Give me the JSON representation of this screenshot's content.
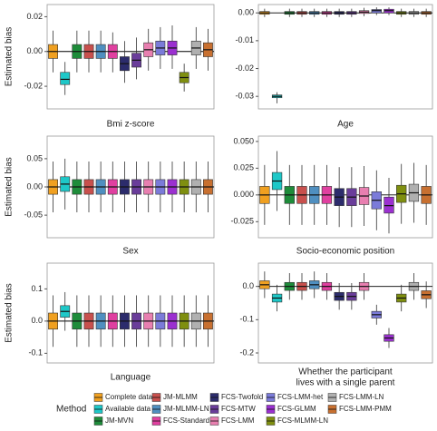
{
  "legend": {
    "title": "Method",
    "series": [
      {
        "name": "Complete data",
        "color": "#F0A020"
      },
      {
        "name": "Available data",
        "color": "#1EC8C8"
      },
      {
        "name": "JM-MVN",
        "color": "#1E8C3A"
      },
      {
        "name": "JM-MLMM",
        "color": "#C8504D"
      },
      {
        "name": "JM-MLMM-LN",
        "color": "#4F8FC0"
      },
      {
        "name": "FCS-Standard",
        "color": "#E040A0"
      },
      {
        "name": "FCS-Twofold",
        "color": "#2C2C6C"
      },
      {
        "name": "FCS-MTW",
        "color": "#6A3D9A"
      },
      {
        "name": "FCS-LMM",
        "color": "#E87FB0"
      },
      {
        "name": "FCS-LMM-het",
        "color": "#7B7BD9"
      },
      {
        "name": "FCS-GLMM",
        "color": "#9B30D0"
      },
      {
        "name": "FCS-MLMM-LN",
        "color": "#7F8F10"
      },
      {
        "name": "FCS-LMM-LN",
        "color": "#B0B0B0"
      },
      {
        "name": "FCS-LMM-PMM",
        "color": "#C87030"
      }
    ]
  },
  "chart_data": [
    {
      "type": "box",
      "xlabel": "Bmi z-score",
      "ylabel": "Estimated bias",
      "ylim": [
        -0.033,
        0.027
      ],
      "yticks": [
        -0.02,
        {
          "value": 0,
          "label": "0.00"
        },
        0.02
      ],
      "hline": 0,
      "boxes": [
        [
          -0.012,
          -0.004,
          0,
          0.004,
          0.012
        ],
        [
          -0.025,
          -0.019,
          -0.016,
          -0.012,
          -0.006
        ],
        [
          -0.012,
          -0.004,
          0,
          0.004,
          0.012
        ],
        [
          -0.012,
          -0.004,
          0,
          0.004,
          0.012
        ],
        [
          -0.012,
          -0.004,
          0,
          0.004,
          0.012
        ],
        [
          -0.012,
          -0.004,
          0,
          0.004,
          0.011
        ],
        [
          -0.018,
          -0.011,
          -0.007,
          -0.003,
          0.006
        ],
        [
          -0.016,
          -0.009,
          -0.005,
          -0.001,
          0.008
        ],
        [
          -0.011,
          -0.003,
          0.001,
          0.005,
          0.013
        ],
        [
          -0.01,
          -0.002,
          0.002,
          0.006,
          0.014
        ],
        [
          -0.01,
          -0.002,
          0.002,
          0.006,
          0.015
        ],
        [
          -0.023,
          -0.018,
          -0.015,
          -0.012,
          -0.007
        ],
        [
          -0.01,
          -0.002,
          0.002,
          0.006,
          0.014
        ],
        [
          -0.011,
          -0.003,
          0.001,
          0.005,
          0.013
        ]
      ]
    },
    {
      "type": "box",
      "xlabel": "Age",
      "ylim": [
        -0.0345,
        0.003
      ],
      "yticks": [
        -0.03,
        -0.02,
        -0.01,
        {
          "value": 0,
          "label": "0.00"
        }
      ],
      "hline": 0,
      "boxes": [
        [
          -0.0015,
          -0.0005,
          0,
          0.0005,
          0.0015
        ],
        [
          -0.0325,
          -0.0305,
          -0.03,
          -0.0295,
          -0.0285
        ],
        [
          -0.0015,
          -0.0005,
          0,
          0.0005,
          0.0015
        ],
        [
          -0.0015,
          -0.0005,
          0,
          0.0005,
          0.0015
        ],
        [
          -0.0015,
          -0.0005,
          0,
          0.0005,
          0.0015
        ],
        [
          -0.0015,
          -0.0005,
          0,
          0.0005,
          0.0015
        ],
        [
          -0.0015,
          -0.0005,
          0,
          0.0005,
          0.0015
        ],
        [
          -0.0015,
          -0.0005,
          0,
          0.0005,
          0.0015
        ],
        [
          -0.0012,
          -0.0002,
          0.0003,
          0.0008,
          0.0018
        ],
        [
          -0.0008,
          0,
          0.0008,
          0.0012,
          0.002
        ],
        [
          -0.0008,
          0,
          0.0008,
          0.0013,
          0.002
        ],
        [
          -0.0015,
          -0.0005,
          0,
          0.0005,
          0.0015
        ],
        [
          -0.0015,
          -0.0005,
          0,
          0.0005,
          0.0015
        ],
        [
          -0.0015,
          -0.0005,
          0,
          0.0005,
          0.0015
        ]
      ]
    },
    {
      "type": "box",
      "xlabel": "Sex",
      "ylabel": "Estimated bias",
      "ylim": [
        -0.09,
        0.09
      ],
      "yticks": [
        -0.05,
        {
          "value": 0,
          "label": "0.00"
        },
        0.05
      ],
      "hline": 0,
      "boxes": [
        [
          -0.045,
          -0.013,
          0,
          0.013,
          0.045
        ],
        [
          -0.04,
          -0.008,
          0.005,
          0.018,
          0.05
        ],
        [
          -0.045,
          -0.013,
          0,
          0.013,
          0.045
        ],
        [
          -0.045,
          -0.013,
          0,
          0.013,
          0.045
        ],
        [
          -0.045,
          -0.013,
          0,
          0.013,
          0.045
        ],
        [
          -0.045,
          -0.013,
          0,
          0.013,
          0.045
        ],
        [
          -0.045,
          -0.013,
          0,
          0.013,
          0.045
        ],
        [
          -0.045,
          -0.013,
          0,
          0.013,
          0.045
        ],
        [
          -0.045,
          -0.013,
          0,
          0.013,
          0.045
        ],
        [
          -0.045,
          -0.013,
          0,
          0.013,
          0.045
        ],
        [
          -0.045,
          -0.013,
          0,
          0.013,
          0.045
        ],
        [
          -0.045,
          -0.013,
          0,
          0.013,
          0.045
        ],
        [
          -0.045,
          -0.013,
          0,
          0.013,
          0.045
        ],
        [
          -0.045,
          -0.013,
          0,
          0.013,
          0.045
        ]
      ]
    },
    {
      "type": "box",
      "xlabel": "Socio-economic position",
      "ylim": [
        -0.04,
        0.055
      ],
      "yticks": [
        -0.025,
        {
          "value": 0,
          "label": "0.000"
        },
        {
          "value": 0.025,
          "label": "0.025"
        },
        {
          "value": 0.05,
          "label": "0.050"
        }
      ],
      "hline": 0,
      "boxes": [
        [
          -0.028,
          -0.008,
          0,
          0.008,
          0.028
        ],
        [
          -0.015,
          0.005,
          0.013,
          0.021,
          0.041
        ],
        [
          -0.028,
          -0.008,
          0,
          0.008,
          0.028
        ],
        [
          -0.028,
          -0.008,
          0,
          0.008,
          0.028
        ],
        [
          -0.028,
          -0.008,
          0,
          0.008,
          0.028
        ],
        [
          -0.028,
          -0.008,
          0,
          0.008,
          0.028
        ],
        [
          -0.03,
          -0.01,
          -0.002,
          0.006,
          0.026
        ],
        [
          -0.03,
          -0.01,
          -0.002,
          0.006,
          0.026
        ],
        [
          -0.029,
          -0.009,
          -0.001,
          0.007,
          0.027
        ],
        [
          -0.033,
          -0.013,
          -0.005,
          0.003,
          0.023
        ],
        [
          -0.036,
          -0.017,
          -0.01,
          -0.002,
          0.016
        ],
        [
          -0.027,
          -0.007,
          0.001,
          0.009,
          0.029
        ],
        [
          -0.026,
          -0.006,
          0.002,
          0.01,
          0.03
        ],
        [
          -0.028,
          -0.008,
          0,
          0.008,
          0.028
        ]
      ]
    },
    {
      "type": "box",
      "xlabel": "Language",
      "ylabel": "Estimated bias",
      "ylim": [
        -0.13,
        0.18
      ],
      "yticks": [
        -0.1,
        {
          "value": 0,
          "label": "0.0"
        },
        0.1
      ],
      "hline": 0,
      "boxes": [
        [
          -0.08,
          -0.025,
          0,
          0.025,
          0.08
        ],
        [
          -0.03,
          0.012,
          0.03,
          0.048,
          0.09
        ],
        [
          -0.08,
          -0.025,
          0,
          0.025,
          0.08
        ],
        [
          -0.08,
          -0.025,
          0,
          0.025,
          0.08
        ],
        [
          -0.08,
          -0.025,
          0,
          0.025,
          0.08
        ],
        [
          -0.08,
          -0.025,
          0,
          0.025,
          0.08
        ],
        [
          -0.08,
          -0.025,
          0,
          0.025,
          0.08
        ],
        [
          -0.08,
          -0.025,
          0,
          0.025,
          0.08
        ],
        [
          -0.08,
          -0.025,
          0,
          0.025,
          0.08
        ],
        [
          -0.08,
          -0.025,
          0,
          0.025,
          0.08
        ],
        [
          -0.08,
          -0.025,
          0,
          0.025,
          0.08
        ],
        [
          -0.08,
          -0.025,
          0,
          0.025,
          0.08
        ],
        [
          -0.08,
          -0.025,
          0,
          0.025,
          0.08
        ],
        [
          -0.08,
          -0.025,
          0,
          0.025,
          0.08
        ]
      ]
    },
    {
      "type": "box",
      "xlabel": [
        "Whether the participant",
        "lives with a single parent"
      ],
      "ylim": [
        -0.23,
        0.07
      ],
      "yticks": [
        -0.2,
        -0.1,
        {
          "value": 0,
          "label": "0.0"
        }
      ],
      "hline": 0,
      "boxes": [
        [
          -0.035,
          -0.007,
          0.005,
          0.017,
          0.045
        ],
        [
          -0.075,
          -0.047,
          -0.035,
          -0.023,
          0.005
        ],
        [
          -0.04,
          -0.012,
          0,
          0.012,
          0.04
        ],
        [
          -0.04,
          -0.012,
          0,
          0.012,
          0.04
        ],
        [
          -0.035,
          -0.007,
          0.005,
          0.017,
          0.045
        ],
        [
          -0.04,
          -0.012,
          0,
          0.012,
          0.04
        ],
        [
          -0.07,
          -0.042,
          -0.03,
          -0.018,
          0.01
        ],
        [
          -0.07,
          -0.042,
          -0.03,
          -0.018,
          0.01
        ],
        [
          -0.04,
          -0.012,
          0,
          0.012,
          0.04
        ],
        [
          -0.115,
          -0.095,
          -0.085,
          -0.075,
          -0.055
        ],
        [
          -0.185,
          -0.165,
          -0.155,
          -0.145,
          -0.125
        ],
        [
          -0.075,
          -0.047,
          -0.035,
          -0.023,
          0.005
        ],
        [
          -0.04,
          -0.012,
          0,
          0.012,
          0.04
        ],
        [
          -0.065,
          -0.037,
          -0.025,
          -0.013,
          0.015
        ]
      ]
    }
  ]
}
